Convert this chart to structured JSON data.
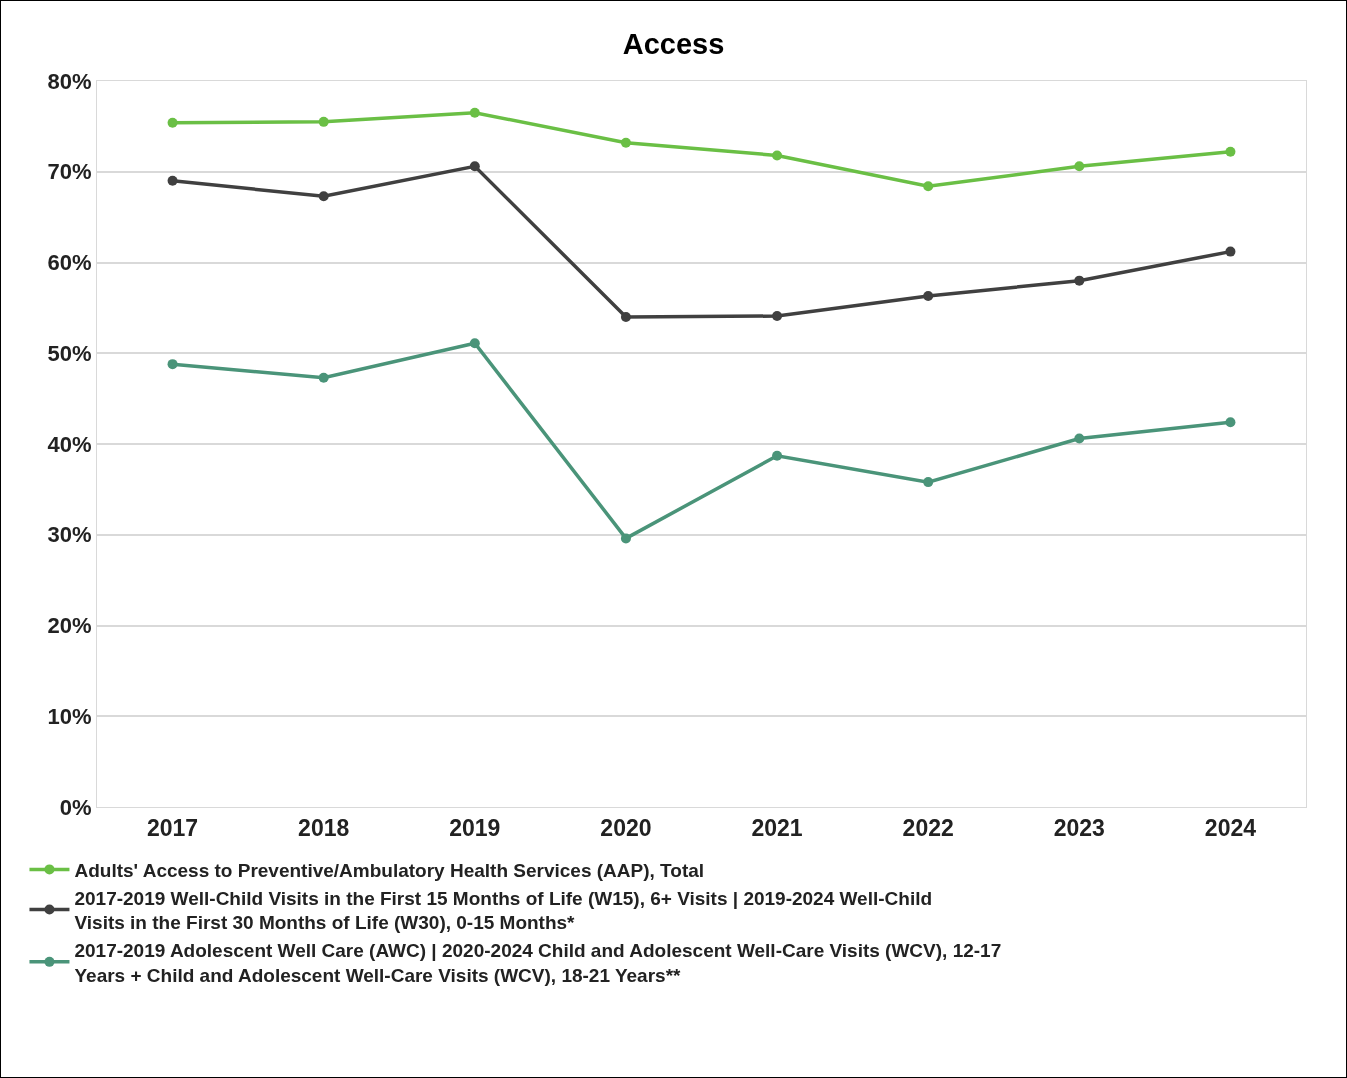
{
  "chart_data": {
    "type": "line",
    "title": "Access",
    "categories": [
      "2017",
      "2018",
      "2019",
      "2020",
      "2021",
      "2022",
      "2023",
      "2024"
    ],
    "series": [
      {
        "name": "Adults' Access to Preventive/Ambulatory Health Services (AAP), Total",
        "color": "#6abf45",
        "values": [
          75.4,
          75.5,
          76.5,
          73.2,
          71.8,
          68.4,
          70.6,
          72.2
        ]
      },
      {
        "name": "2017-2019 Well-Child Visits in the First 15 Months of Life (W15), 6+ Visits | 2019-2024 Well-Child Visits in the First 30 Months of Life (W30), 0-15 Months*",
        "color": "#404040",
        "values": [
          69.0,
          67.3,
          70.6,
          54.0,
          54.1,
          56.3,
          58.0,
          61.2
        ]
      },
      {
        "name": "2017-2019 Adolescent Well Care (AWC) | 2020-2024 Child and Adolescent Well-Care Visits (WCV), 12-17 Years + Child and Adolescent Well-Care Visits (WCV), 18-21 Years**",
        "color": "#4a9479",
        "values": [
          48.8,
          47.3,
          51.1,
          29.6,
          38.7,
          35.8,
          40.6,
          42.4
        ]
      }
    ],
    "ylim": [
      0,
      80
    ],
    "yticks": [
      {
        "value": 0,
        "label": "0%"
      },
      {
        "value": 10,
        "label": "10%"
      },
      {
        "value": 20,
        "label": "20%"
      },
      {
        "value": 30,
        "label": "30%"
      },
      {
        "value": 40,
        "label": "40%"
      },
      {
        "value": 50,
        "label": "50%"
      },
      {
        "value": 60,
        "label": "60%"
      },
      {
        "value": 70,
        "label": "70%"
      },
      {
        "value": 80,
        "label": "80%"
      }
    ],
    "grid": "y",
    "legend": "bottom",
    "marker": "circle",
    "line_style": "solid"
  }
}
